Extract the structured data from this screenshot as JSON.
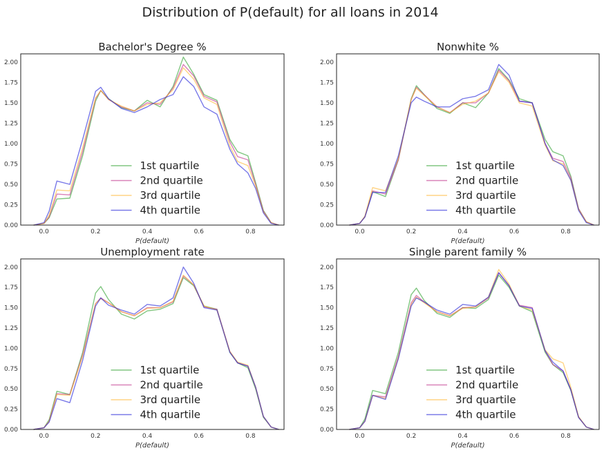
{
  "figure": {
    "title": "Distribution of P(default) for all loans in 2014"
  },
  "chart_data": [
    {
      "type": "line",
      "title": "Bachelor's Degree %",
      "xlabel": "P(default)",
      "ylabel": "",
      "xlim": [
        -0.09,
        0.93
      ],
      "ylim": [
        0,
        2.1
      ],
      "xticks": [
        "0.0",
        "0.2",
        "0.4",
        "0.6",
        "0.8"
      ],
      "yticks": [
        "0.00",
        "0.25",
        "0.50",
        "0.75",
        "1.00",
        "1.25",
        "1.50",
        "1.75",
        "2.00"
      ],
      "legend_position": "lower center",
      "x": [
        -0.04,
        0.0,
        0.02,
        0.05,
        0.1,
        0.15,
        0.2,
        0.22,
        0.25,
        0.3,
        0.35,
        0.4,
        0.45,
        0.5,
        0.54,
        0.58,
        0.62,
        0.67,
        0.72,
        0.75,
        0.79,
        0.82,
        0.85,
        0.88,
        0.91
      ],
      "series": [
        {
          "name": "1st quartile",
          "color": "#2ca02c",
          "values": [
            0.0,
            0.02,
            0.09,
            0.32,
            0.33,
            0.85,
            1.52,
            1.65,
            1.55,
            1.44,
            1.4,
            1.53,
            1.45,
            1.7,
            2.06,
            1.85,
            1.6,
            1.53,
            1.05,
            0.9,
            0.85,
            0.52,
            0.18,
            0.03,
            0.0
          ]
        },
        {
          "name": "2nd quartile",
          "color": "#bf2f8a",
          "values": [
            0.0,
            0.02,
            0.1,
            0.38,
            0.37,
            0.9,
            1.55,
            1.65,
            1.54,
            1.45,
            1.4,
            1.5,
            1.48,
            1.68,
            1.97,
            1.83,
            1.58,
            1.51,
            1.02,
            0.84,
            0.8,
            0.5,
            0.17,
            0.03,
            0.0
          ]
        },
        {
          "name": "3rd quartile",
          "color": "#ffb732",
          "values": [
            0.0,
            0.02,
            0.12,
            0.43,
            0.42,
            0.95,
            1.56,
            1.65,
            1.54,
            1.46,
            1.4,
            1.48,
            1.5,
            1.66,
            1.93,
            1.79,
            1.56,
            1.48,
            0.97,
            0.78,
            0.73,
            0.48,
            0.16,
            0.03,
            0.0
          ]
        },
        {
          "name": "4th quartile",
          "color": "#1f1fd9",
          "values": [
            0.0,
            0.03,
            0.17,
            0.54,
            0.5,
            1.05,
            1.64,
            1.69,
            1.55,
            1.43,
            1.38,
            1.45,
            1.54,
            1.6,
            1.82,
            1.7,
            1.45,
            1.36,
            0.93,
            0.75,
            0.64,
            0.45,
            0.15,
            0.02,
            0.0
          ]
        }
      ]
    },
    {
      "type": "line",
      "title": "Nonwhite %",
      "xlabel": "P(default)",
      "ylabel": "",
      "xlim": [
        -0.09,
        0.93
      ],
      "ylim": [
        0,
        2.1
      ],
      "xticks": [
        "0.0",
        "0.2",
        "0.4",
        "0.6",
        "0.8"
      ],
      "yticks": [
        "0.00",
        "0.25",
        "0.50",
        "0.75",
        "1.00",
        "1.25",
        "1.50",
        "1.75",
        "2.00"
      ],
      "legend_position": "lower center",
      "x": [
        -0.04,
        0.0,
        0.02,
        0.05,
        0.1,
        0.15,
        0.2,
        0.22,
        0.25,
        0.3,
        0.35,
        0.4,
        0.45,
        0.5,
        0.54,
        0.58,
        0.62,
        0.67,
        0.72,
        0.75,
        0.79,
        0.82,
        0.85,
        0.88,
        0.91
      ],
      "series": [
        {
          "name": "1st quartile",
          "color": "#2ca02c",
          "values": [
            0.0,
            0.02,
            0.1,
            0.41,
            0.35,
            0.8,
            1.55,
            1.71,
            1.6,
            1.43,
            1.37,
            1.5,
            1.44,
            1.62,
            1.92,
            1.78,
            1.55,
            1.5,
            1.05,
            0.9,
            0.85,
            0.6,
            0.2,
            0.04,
            0.0
          ]
        },
        {
          "name": "2nd quartile",
          "color": "#bf2f8a",
          "values": [
            0.0,
            0.02,
            0.1,
            0.42,
            0.38,
            0.8,
            1.54,
            1.69,
            1.6,
            1.45,
            1.38,
            1.5,
            1.5,
            1.62,
            1.9,
            1.77,
            1.52,
            1.5,
            1.0,
            0.82,
            0.78,
            0.58,
            0.2,
            0.04,
            0.0
          ]
        },
        {
          "name": "3rd quartile",
          "color": "#ffb732",
          "values": [
            0.0,
            0.02,
            0.11,
            0.46,
            0.42,
            0.82,
            1.54,
            1.68,
            1.59,
            1.45,
            1.38,
            1.48,
            1.52,
            1.62,
            1.88,
            1.75,
            1.5,
            1.46,
            0.98,
            0.79,
            0.75,
            0.55,
            0.19,
            0.04,
            0.0
          ]
        },
        {
          "name": "4th quartile",
          "color": "#1f1fd9",
          "values": [
            0.0,
            0.02,
            0.1,
            0.4,
            0.4,
            0.85,
            1.5,
            1.57,
            1.52,
            1.45,
            1.45,
            1.55,
            1.58,
            1.66,
            1.97,
            1.84,
            1.52,
            1.5,
            1.0,
            0.8,
            0.73,
            0.55,
            0.18,
            0.03,
            0.0
          ]
        }
      ]
    },
    {
      "type": "line",
      "title": "Unemployment rate",
      "xlabel": "P(default)",
      "ylabel": "",
      "xlim": [
        -0.09,
        0.93
      ],
      "ylim": [
        0,
        2.1
      ],
      "xticks": [
        "0.0",
        "0.2",
        "0.4",
        "0.6",
        "0.8"
      ],
      "yticks": [
        "0.00",
        "0.25",
        "0.50",
        "0.75",
        "1.00",
        "1.25",
        "1.50",
        "1.75",
        "2.00"
      ],
      "legend_position": "lower center",
      "x": [
        -0.04,
        0.0,
        0.02,
        0.05,
        0.1,
        0.15,
        0.2,
        0.22,
        0.25,
        0.3,
        0.35,
        0.4,
        0.45,
        0.5,
        0.54,
        0.58,
        0.62,
        0.67,
        0.72,
        0.75,
        0.79,
        0.82,
        0.85,
        0.88,
        0.91
      ],
      "series": [
        {
          "name": "1st quartile",
          "color": "#2ca02c",
          "values": [
            0.0,
            0.02,
            0.12,
            0.47,
            0.43,
            0.95,
            1.68,
            1.76,
            1.6,
            1.42,
            1.36,
            1.46,
            1.48,
            1.55,
            1.87,
            1.77,
            1.52,
            1.48,
            0.95,
            0.82,
            0.76,
            0.5,
            0.15,
            0.03,
            0.0
          ]
        },
        {
          "name": "2nd quartile",
          "color": "#bf2f8a",
          "values": [
            0.0,
            0.02,
            0.1,
            0.44,
            0.43,
            0.92,
            1.55,
            1.62,
            1.56,
            1.45,
            1.4,
            1.5,
            1.5,
            1.57,
            1.89,
            1.78,
            1.51,
            1.48,
            0.96,
            0.82,
            0.78,
            0.52,
            0.16,
            0.03,
            0.0
          ]
        },
        {
          "name": "3rd quartile",
          "color": "#ffb732",
          "values": [
            0.0,
            0.02,
            0.1,
            0.43,
            0.42,
            0.9,
            1.55,
            1.61,
            1.56,
            1.45,
            1.4,
            1.49,
            1.5,
            1.58,
            1.9,
            1.78,
            1.52,
            1.47,
            0.96,
            0.83,
            0.79,
            0.52,
            0.16,
            0.03,
            0.0
          ]
        },
        {
          "name": "4th quartile",
          "color": "#1f1fd9",
          "values": [
            0.0,
            0.02,
            0.09,
            0.38,
            0.33,
            0.85,
            1.52,
            1.62,
            1.53,
            1.47,
            1.42,
            1.54,
            1.52,
            1.62,
            2.0,
            1.8,
            1.5,
            1.47,
            0.95,
            0.82,
            0.78,
            0.52,
            0.16,
            0.03,
            0.0
          ]
        }
      ]
    },
    {
      "type": "line",
      "title": "Single parent family %",
      "xlabel": "P(default)",
      "ylabel": "",
      "xlim": [
        -0.09,
        0.93
      ],
      "ylim": [
        0,
        2.1
      ],
      "xticks": [
        "0.0",
        "0.2",
        "0.4",
        "0.6",
        "0.8"
      ],
      "yticks": [
        "0.00",
        "0.25",
        "0.50",
        "0.75",
        "1.00",
        "1.25",
        "1.50",
        "1.75",
        "2.00"
      ],
      "legend_position": "lower center",
      "x": [
        -0.04,
        0.0,
        0.02,
        0.05,
        0.1,
        0.15,
        0.2,
        0.22,
        0.25,
        0.3,
        0.35,
        0.4,
        0.45,
        0.5,
        0.54,
        0.58,
        0.62,
        0.67,
        0.72,
        0.75,
        0.79,
        0.82,
        0.85,
        0.88,
        0.91
      ],
      "series": [
        {
          "name": "1st quartile",
          "color": "#2ca02c",
          "values": [
            0.0,
            0.02,
            0.13,
            0.48,
            0.44,
            0.95,
            1.66,
            1.74,
            1.59,
            1.43,
            1.38,
            1.5,
            1.49,
            1.6,
            1.9,
            1.75,
            1.52,
            1.45,
            0.95,
            0.8,
            0.7,
            0.48,
            0.15,
            0.03,
            0.0
          ]
        },
        {
          "name": "2nd quartile",
          "color": "#bf2f8a",
          "values": [
            0.0,
            0.02,
            0.1,
            0.42,
            0.4,
            0.9,
            1.56,
            1.65,
            1.57,
            1.45,
            1.4,
            1.5,
            1.51,
            1.62,
            1.93,
            1.77,
            1.53,
            1.5,
            0.97,
            0.8,
            0.72,
            0.49,
            0.15,
            0.03,
            0.0
          ]
        },
        {
          "name": "3rd quartile",
          "color": "#ffb732",
          "values": [
            0.0,
            0.02,
            0.1,
            0.42,
            0.38,
            0.88,
            1.54,
            1.63,
            1.56,
            1.45,
            1.4,
            1.49,
            1.51,
            1.63,
            1.97,
            1.79,
            1.52,
            1.47,
            0.98,
            0.87,
            0.82,
            0.52,
            0.16,
            0.03,
            0.0
          ]
        },
        {
          "name": "4th quartile",
          "color": "#1f1fd9",
          "values": [
            0.0,
            0.02,
            0.1,
            0.42,
            0.37,
            0.87,
            1.52,
            1.62,
            1.57,
            1.47,
            1.42,
            1.54,
            1.52,
            1.63,
            1.93,
            1.77,
            1.52,
            1.49,
            0.97,
            0.83,
            0.72,
            0.49,
            0.15,
            0.03,
            0.0
          ]
        }
      ]
    }
  ]
}
